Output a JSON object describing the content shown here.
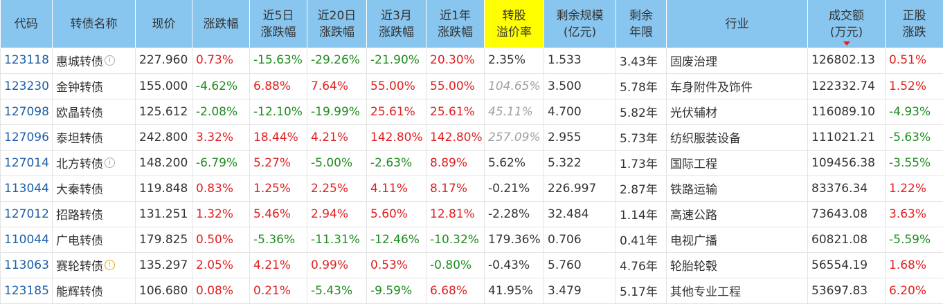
{
  "colors": {
    "header_bg": "#88c5ef",
    "highlight_header_bg": "#ffff00",
    "up": "#e02020",
    "down": "#1e8c1e",
    "code": "#1a5ea8",
    "muted": "#a0a0a0"
  },
  "columns": [
    {
      "key": "code",
      "lines": [
        "代码"
      ]
    },
    {
      "key": "name",
      "lines": [
        "转债名称"
      ]
    },
    {
      "key": "price",
      "lines": [
        "现价"
      ]
    },
    {
      "key": "chg",
      "lines": [
        "涨跌幅"
      ]
    },
    {
      "key": "chg5d",
      "lines": [
        "近5日",
        "涨跌幅"
      ]
    },
    {
      "key": "chg20d",
      "lines": [
        "近20日",
        "涨跌幅"
      ]
    },
    {
      "key": "chg3m",
      "lines": [
        "近3月",
        "涨跌幅"
      ]
    },
    {
      "key": "chg1y",
      "lines": [
        "近1年",
        "涨跌幅"
      ]
    },
    {
      "key": "premium",
      "lines": [
        "转股",
        "溢价率"
      ],
      "highlight": true
    },
    {
      "key": "remain_size",
      "lines": [
        "剩余规模",
        "(亿元)"
      ]
    },
    {
      "key": "remain_term",
      "lines": [
        "剩余",
        "年限"
      ]
    },
    {
      "key": "industry",
      "lines": [
        "行业"
      ]
    },
    {
      "key": "volume",
      "lines": [
        "成交额",
        "(万元)"
      ],
      "sorted": "desc"
    },
    {
      "key": "stock_chg",
      "lines": [
        "正股",
        "涨跌"
      ]
    }
  ],
  "rows": [
    {
      "code": "123118",
      "name": "惠城转债",
      "name_icon": "info-icon",
      "price": "227.960",
      "chg": "0.73%",
      "chg5d": "-15.63%",
      "chg20d": "-29.26%",
      "chg3m": "-21.90%",
      "chg1y": "20.30%",
      "premium": "2.35%",
      "premium_muted": false,
      "remain_size": "1.533",
      "remain_term": "3.43年",
      "industry": "固废治理",
      "volume": "126802.13",
      "stock_chg": "0.51%"
    },
    {
      "code": "123230",
      "name": "金钟转债",
      "name_icon": null,
      "price": "155.000",
      "chg": "-4.62%",
      "chg5d": "6.88%",
      "chg20d": "7.64%",
      "chg3m": "55.00%",
      "chg1y": "55.00%",
      "premium": "104.65%",
      "premium_muted": true,
      "remain_size": "3.500",
      "remain_term": "5.78年",
      "industry": "车身附件及饰件",
      "volume": "122332.74",
      "stock_chg": "1.52%"
    },
    {
      "code": "127098",
      "name": "欧晶转债",
      "name_icon": null,
      "price": "125.612",
      "chg": "-2.08%",
      "chg5d": "-12.10%",
      "chg20d": "-19.99%",
      "chg3m": "25.61%",
      "chg1y": "25.61%",
      "premium": "45.11%",
      "premium_muted": true,
      "remain_size": "4.700",
      "remain_term": "5.82年",
      "industry": "光伏辅材",
      "volume": "116089.10",
      "stock_chg": "-4.93%"
    },
    {
      "code": "127096",
      "name": "泰坦转债",
      "name_icon": null,
      "price": "242.800",
      "chg": "3.32%",
      "chg5d": "18.44%",
      "chg20d": "4.21%",
      "chg3m": "142.80%",
      "chg1y": "142.80%",
      "premium": "257.09%",
      "premium_muted": true,
      "remain_size": "2.955",
      "remain_term": "5.73年",
      "industry": "纺织服装设备",
      "volume": "111021.21",
      "stock_chg": "-5.63%"
    },
    {
      "code": "127014",
      "name": "北方转债",
      "name_icon": "info-icon",
      "price": "148.200",
      "chg": "-6.79%",
      "chg5d": "5.27%",
      "chg20d": "-5.00%",
      "chg3m": "-2.63%",
      "chg1y": "8.89%",
      "premium": "5.62%",
      "premium_muted": false,
      "remain_size": "5.322",
      "remain_term": "1.73年",
      "industry": "国际工程",
      "volume": "109456.38",
      "stock_chg": "-3.55%"
    },
    {
      "code": "113044",
      "name": "大秦转债",
      "name_icon": null,
      "price": "119.848",
      "chg": "0.83%",
      "chg5d": "1.25%",
      "chg20d": "2.25%",
      "chg3m": "4.11%",
      "chg1y": "8.17%",
      "premium": "-0.21%",
      "premium_muted": false,
      "remain_size": "226.997",
      "remain_term": "2.87年",
      "industry": "铁路运输",
      "volume": "83376.34",
      "stock_chg": "1.22%"
    },
    {
      "code": "127012",
      "name": "招路转债",
      "name_icon": null,
      "price": "131.251",
      "chg": "1.32%",
      "chg5d": "5.46%",
      "chg20d": "2.94%",
      "chg3m": "5.60%",
      "chg1y": "12.81%",
      "premium": "-2.28%",
      "premium_muted": false,
      "remain_size": "32.484",
      "remain_term": "1.14年",
      "industry": "高速公路",
      "volume": "73643.08",
      "stock_chg": "3.63%"
    },
    {
      "code": "110044",
      "name": "广电转债",
      "name_icon": null,
      "price": "179.825",
      "chg": "0.50%",
      "chg5d": "-5.36%",
      "chg20d": "-11.31%",
      "chg3m": "-12.46%",
      "chg1y": "-10.32%",
      "premium": "179.36%",
      "premium_muted": false,
      "remain_size": "0.706",
      "remain_term": "0.41年",
      "industry": "电视广播",
      "volume": "60821.08",
      "stock_chg": "-5.59%"
    },
    {
      "code": "113063",
      "name": "赛轮转债",
      "name_icon": "warning-icon",
      "price": "135.297",
      "chg": "2.05%",
      "chg5d": "4.21%",
      "chg20d": "0.99%",
      "chg3m": "0.53%",
      "chg1y": "-0.80%",
      "premium": "-0.43%",
      "premium_muted": false,
      "remain_size": "5.760",
      "remain_term": "4.76年",
      "industry": "轮胎轮毂",
      "volume": "56554.19",
      "stock_chg": "1.68%"
    },
    {
      "code": "123185",
      "name": "能辉转债",
      "name_icon": null,
      "price": "106.680",
      "chg": "0.08%",
      "chg5d": "0.21%",
      "chg20d": "-5.43%",
      "chg3m": "-9.59%",
      "chg1y": "6.68%",
      "premium": "41.95%",
      "premium_muted": false,
      "remain_size": "3.479",
      "remain_term": "5.17年",
      "industry": "其他专业工程",
      "volume": "53697.83",
      "stock_chg": "6.20%"
    }
  ]
}
